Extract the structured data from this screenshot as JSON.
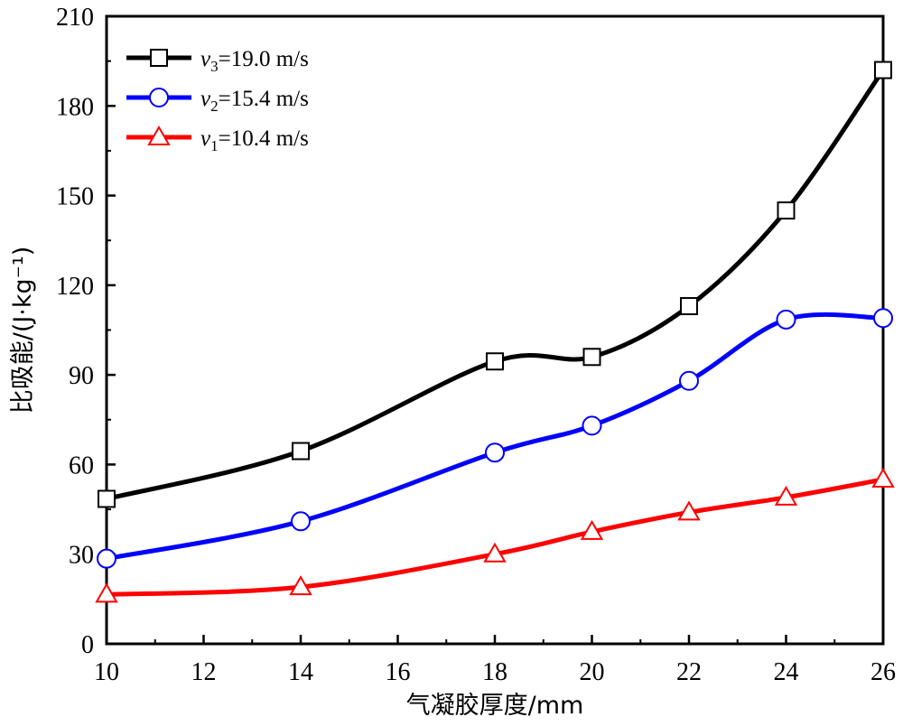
{
  "chart_data": {
    "type": "line",
    "title": "",
    "xlabel": "气凝胶厚度/mm",
    "ylabel": "比吸能/(J·kg⁻¹)",
    "xlim": [
      10,
      26
    ],
    "ylim": [
      0,
      210
    ],
    "xticks": [
      "10",
      "12",
      "14",
      "16",
      "18",
      "20",
      "22",
      "24",
      "26"
    ],
    "yticks": [
      "0",
      "30",
      "60",
      "90",
      "120",
      "150",
      "180",
      "210"
    ],
    "grid": false,
    "legend_position": "top-left",
    "x": [
      10,
      14,
      18,
      20,
      22,
      24,
      26
    ],
    "series": [
      {
        "name": "v3=19.0 m/s",
        "legend_symbol": "v",
        "legend_sub": "3",
        "legend_rest": "=19.0 m/s",
        "values": [
          48.5,
          64.5,
          94.5,
          96,
          113,
          145,
          192
        ],
        "color": "#000000",
        "marker": "square"
      },
      {
        "name": "v2=15.4 m/s",
        "legend_symbol": "v",
        "legend_sub": "2",
        "legend_rest": "=15.4 m/s",
        "values": [
          28.5,
          41,
          64,
          73,
          88,
          108.5,
          109
        ],
        "color": "#0000ff",
        "marker": "circle"
      },
      {
        "name": "v1=10.4 m/s",
        "legend_symbol": "v",
        "legend_sub": "1",
        "legend_rest": "=10.4 m/s",
        "values": [
          16.5,
          19,
          30,
          37.5,
          44,
          49,
          55
        ],
        "color": "#ff0000",
        "marker": "triangle"
      }
    ]
  }
}
